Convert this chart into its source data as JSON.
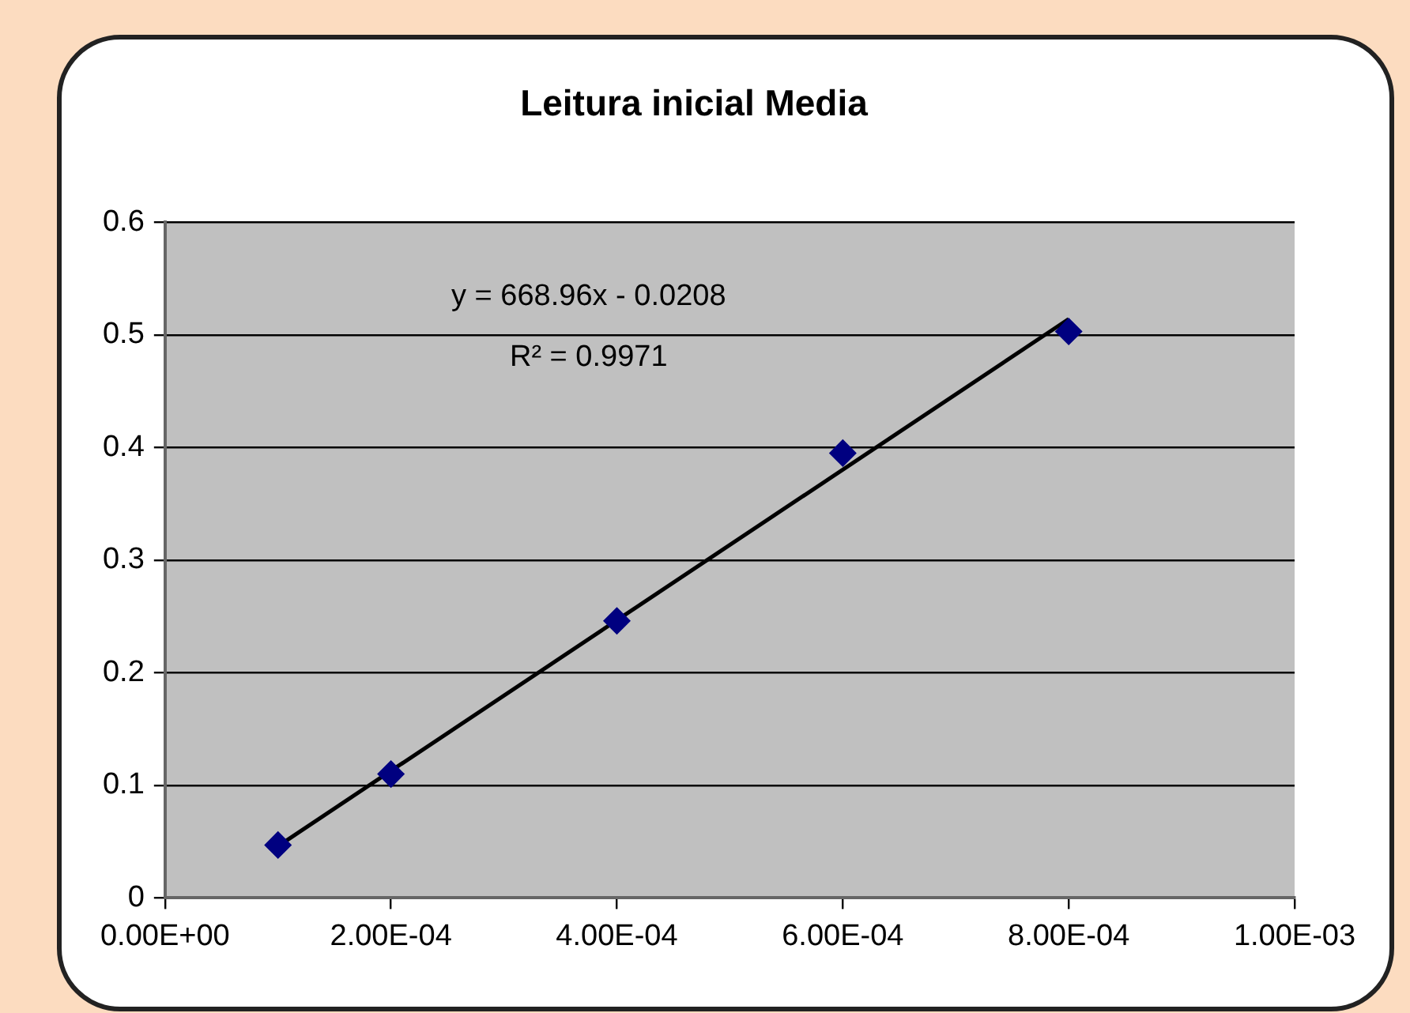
{
  "chart_data": {
    "type": "scatter",
    "title": "Leitura inicial Media",
    "x": [
      0.0001,
      0.0002,
      0.0004,
      0.0006,
      0.0008
    ],
    "series": [
      {
        "type": "scatter",
        "color": "#000080",
        "marker": "diamond",
        "values": [
          0.047,
          0.11,
          0.246,
          0.395,
          0.503
        ]
      },
      {
        "type": "line",
        "color": "#000000",
        "marker": "none",
        "line_style": "solid",
        "x": [
          0.0001,
          0.0008
        ],
        "values": [
          0.046,
          0.514
        ]
      }
    ],
    "xlim": [
      0,
      0.001
    ],
    "xticks": [
      {
        "value": 0,
        "label": "0.00E+00"
      },
      {
        "value": 0.0002,
        "label": "2.00E-04"
      },
      {
        "value": 0.0004,
        "label": "4.00E-04"
      },
      {
        "value": 0.0006,
        "label": "6.00E-04"
      },
      {
        "value": 0.0008,
        "label": "8.00E-04"
      },
      {
        "value": 0.001,
        "label": "1.00E-03"
      }
    ],
    "ylim": [
      0,
      0.6
    ],
    "yticks": [
      0,
      0.1,
      0.2,
      0.3,
      0.4,
      0.5,
      0.6
    ],
    "grid": "y",
    "legend": false,
    "annotations": [
      "y = 668.96x - 0.0208",
      "R² = 0.9971"
    ]
  }
}
